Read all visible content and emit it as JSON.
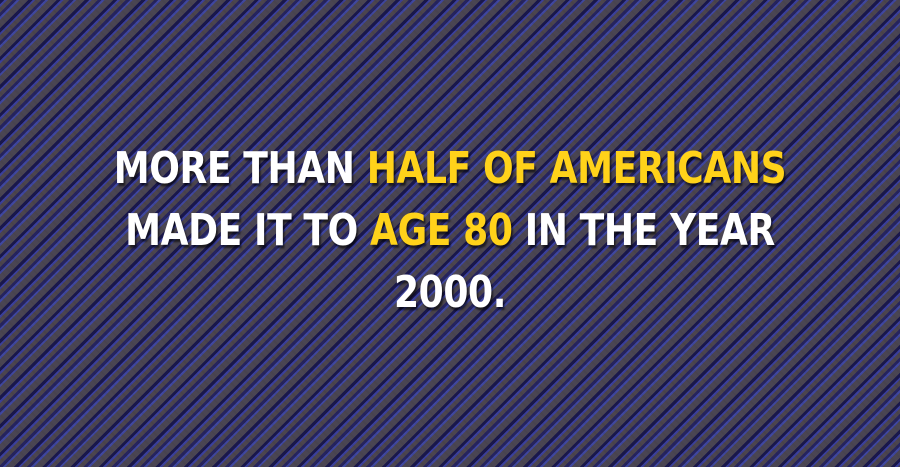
{
  "fact": {
    "line1_a": "MORE THAN ",
    "line1_highlight": "HALF OF AMERICANS",
    "line2_a": "MADE IT TO ",
    "line2_highlight": "AGE 80",
    "line2_b": " IN THE YEAR",
    "line3": "2000."
  },
  "colors": {
    "text": "#ffffff",
    "highlight": "#ffd21a",
    "background": "#3a3866"
  }
}
